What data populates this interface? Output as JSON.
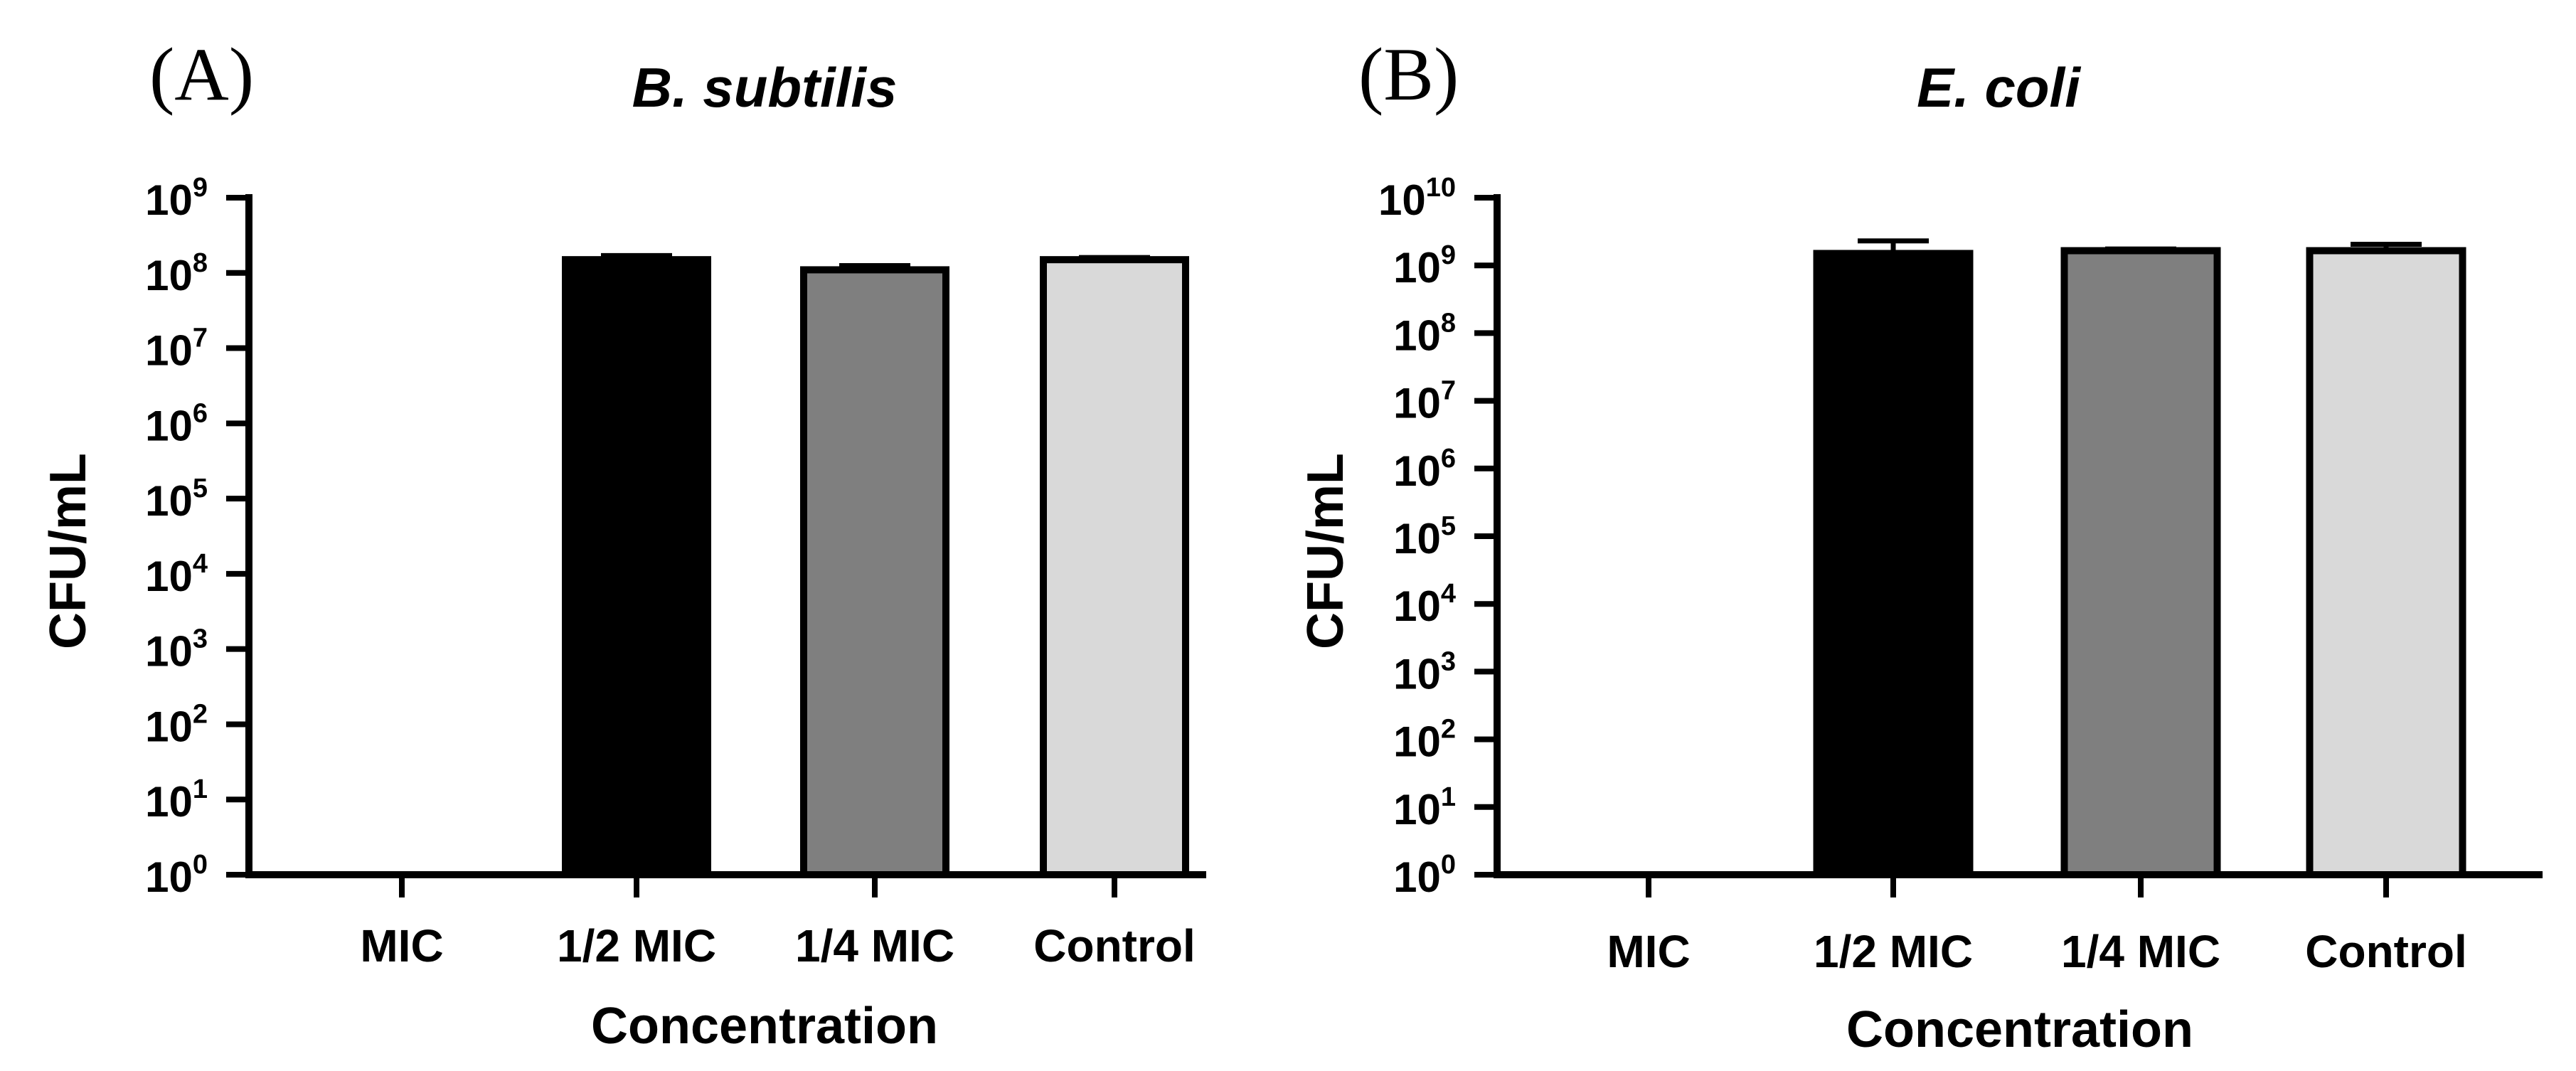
{
  "chart_data": [
    {
      "type": "bar",
      "panel_label": "(A)",
      "title": "B. subtilis",
      "xlabel": "Concentration",
      "ylabel": "CFU/mL",
      "yscale": "log",
      "ylim": [
        1,
        1000000000
      ],
      "ytick_base": "10",
      "ytick_exponents": [
        "0",
        "1",
        "2",
        "3",
        "4",
        "5",
        "6",
        "7",
        "8",
        "9"
      ],
      "categories": [
        "MIC",
        "1/2 MIC",
        "1/4 MIC",
        "Control"
      ],
      "values": [
        0,
        150000000,
        110000000,
        150000000
      ],
      "errors": [
        0,
        20000000,
        15000000,
        10000000
      ],
      "colors": [
        "#000000",
        "#000000",
        "#7f7f7f",
        "#d9d9d9"
      ]
    },
    {
      "type": "bar",
      "panel_label": "(B)",
      "title": "E. coli",
      "xlabel": "Concentration",
      "ylabel": "CFU/mL",
      "yscale": "log",
      "ylim": [
        1,
        10000000000
      ],
      "ytick_base": "10",
      "ytick_exponents": [
        "0",
        "1",
        "2",
        "3",
        "4",
        "5",
        "6",
        "7",
        "8",
        "9",
        "10"
      ],
      "categories": [
        "MIC",
        "1/2 MIC",
        "1/4 MIC",
        "Control"
      ],
      "values": [
        0,
        1500000000,
        1650000000,
        1650000000
      ],
      "errors": [
        0,
        800000000,
        100000000,
        400000000
      ],
      "colors": [
        "#000000",
        "#000000",
        "#7f7f7f",
        "#d9d9d9"
      ]
    }
  ]
}
